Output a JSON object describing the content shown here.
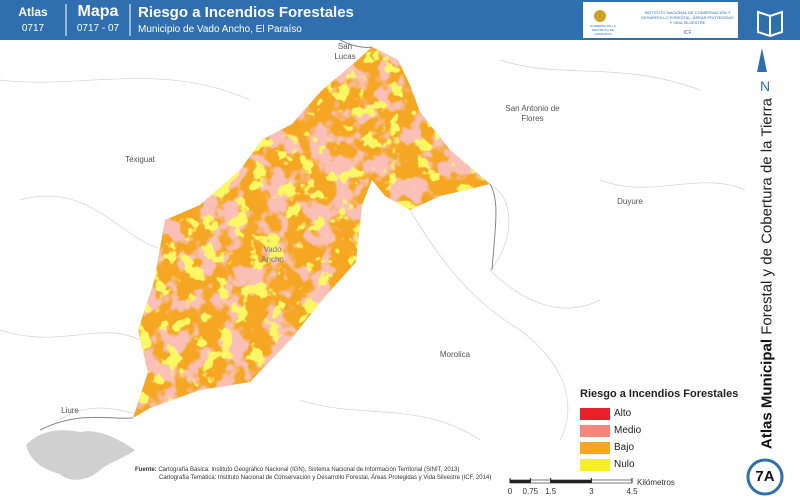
{
  "header": {
    "atlas_label": "Atlas",
    "atlas_code": "0717",
    "map_label": "Mapa",
    "map_code": "0717 - 07",
    "title": "Riesgo a Incendios Forestales",
    "subtitle": "Municipio de Vado Ancho, El Paraíso",
    "logo_gov": "GOBIERNO DE LA REPÚBLICA DE HONDURAS",
    "logo_icf": "INSTITUTO NACIONAL DE CONSERVACIÓN Y DESARROLLO FORESTAL, ÁREAS PROTEGIDAS Y VIDA SILVESTRE",
    "logo_icf_short": "ICF"
  },
  "north": "N",
  "side_title": {
    "bold": "Atlas Municipal",
    "regular": "Forestal y de Cobertura de la Tierra"
  },
  "places": [
    "San Lucas",
    "San Antonio de Flores",
    "Texiguat",
    "Duyure",
    "Vado Ancho",
    "Morolica",
    "Liure"
  ],
  "legend": {
    "title": "Riesgo a Incendios Forestales",
    "items": [
      {
        "label": "Alto",
        "color": "#e8202a"
      },
      {
        "label": "Medio",
        "color": "#f4877a"
      },
      {
        "label": "Bajo",
        "color": "#f5a623"
      },
      {
        "label": "Nulo",
        "color": "#f7f021"
      }
    ]
  },
  "source": {
    "label": "Fuente:",
    "lines": [
      "Cartografía Básica: Instituto Geográfico Nacional (IGN), Sistema Nacional de Información Territorial (SINIT, 2013)",
      "Cartografía Temática: Instituto Nacional de Conservación y Desarrollo Forestal, Áreas Protegidas y Vida Silvestre (ICF, 2014)"
    ]
  },
  "scale": {
    "unit": "Kilómetros",
    "ticks": [
      0,
      0.75,
      1.5,
      3,
      4.5
    ]
  },
  "badge": "7A"
}
